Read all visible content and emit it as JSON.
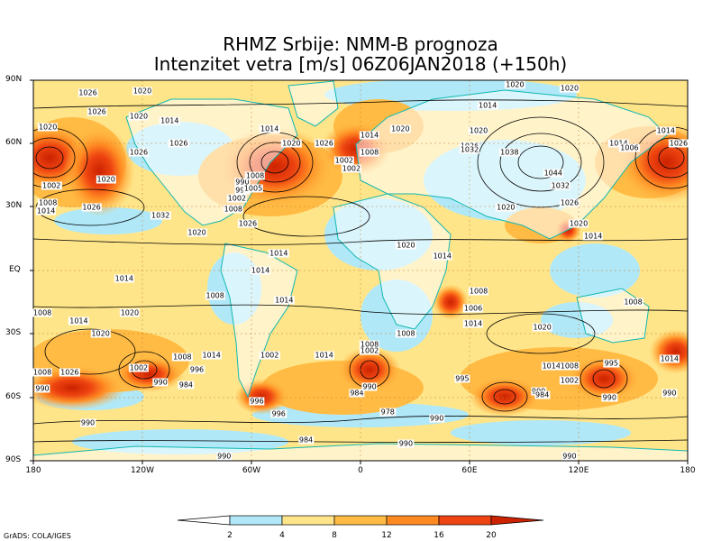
{
  "header": {
    "line1": "RHMZ Srbije: NMM-B prognoza",
    "line2": "Intenzitet vetra [m/s] 06Z06JAN2018 (+150h)"
  },
  "axes": {
    "lat_labels": [
      "90N",
      "60N",
      "30N",
      "EQ",
      "30S",
      "60S",
      "90S"
    ],
    "lon_labels": [
      "180",
      "120W",
      "60W",
      "0",
      "60E",
      "120E",
      "180"
    ]
  },
  "colorbar": {
    "labels": [
      "2",
      "4",
      "8",
      "12",
      "16",
      "20"
    ],
    "colors": [
      "#ffffff",
      "#b0e8f8",
      "#ffe58a",
      "#ffbb44",
      "#ff8a22",
      "#ee4411",
      "#cc2200"
    ]
  },
  "credit": "GrADS: COLA/IGES",
  "isobar_labels": [
    {
      "t": "1026",
      "lon": -150,
      "lat": 84
    },
    {
      "t": "1020",
      "lon": -120,
      "lat": 85
    },
    {
      "t": "1020",
      "lon": 115,
      "lat": 86
    },
    {
      "t": "1020",
      "lon": 85,
      "lat": 88
    },
    {
      "t": "1020",
      "lon": -172,
      "lat": 68
    },
    {
      "t": "1026",
      "lon": -145,
      "lat": 75
    },
    {
      "t": "1020",
      "lon": -122,
      "lat": 73
    },
    {
      "t": "1014",
      "lon": -105,
      "lat": 71
    },
    {
      "t": "1026",
      "lon": -100,
      "lat": 60
    },
    {
      "t": "1014",
      "lon": -50,
      "lat": 67
    },
    {
      "t": "1020",
      "lon": -38,
      "lat": 60
    },
    {
      "t": "1026",
      "lon": -20,
      "lat": 60
    },
    {
      "t": "1014",
      "lon": 5,
      "lat": 64
    },
    {
      "t": "1020",
      "lon": 22,
      "lat": 67
    },
    {
      "t": "1008",
      "lon": 5,
      "lat": 56
    },
    {
      "t": "1002",
      "lon": -5,
      "lat": 48
    },
    {
      "t": "1026",
      "lon": -122,
      "lat": 56
    },
    {
      "t": "1014",
      "lon": 70,
      "lat": 78
    },
    {
      "t": "1020",
      "lon": 65,
      "lat": 66
    },
    {
      "t": "1026",
      "lon": 60,
      "lat": 59
    },
    {
      "t": "1032",
      "lon": 60,
      "lat": 57
    },
    {
      "t": "1038",
      "lon": 82,
      "lat": 56
    },
    {
      "t": "1044",
      "lon": 106,
      "lat": 46
    },
    {
      "t": "1032",
      "lon": 110,
      "lat": 40
    },
    {
      "t": "1026",
      "lon": 115,
      "lat": 32
    },
    {
      "t": "1020",
      "lon": 80,
      "lat": 30
    },
    {
      "t": "1020",
      "lon": 120,
      "lat": 22
    },
    {
      "t": "1014",
      "lon": 128,
      "lat": 16
    },
    {
      "t": "1014",
      "lon": 142,
      "lat": 60
    },
    {
      "t": "1006",
      "lon": 148,
      "lat": 58
    },
    {
      "t": "1014",
      "lon": 168,
      "lat": 66
    },
    {
      "t": "1002",
      "lon": -170,
      "lat": 40
    },
    {
      "t": "1008",
      "lon": -172,
      "lat": 32
    },
    {
      "t": "1014",
      "lon": -173,
      "lat": 28
    },
    {
      "t": "1026",
      "lon": -148,
      "lat": 30
    },
    {
      "t": "1020",
      "lon": -140,
      "lat": 43
    },
    {
      "t": "1032",
      "lon": -110,
      "lat": 26
    },
    {
      "t": "1020",
      "lon": -90,
      "lat": 18
    },
    {
      "t": "1026",
      "lon": -62,
      "lat": 22
    },
    {
      "t": "990",
      "lon": -65,
      "lat": 42
    },
    {
      "t": "996",
      "lon": -65,
      "lat": 38
    },
    {
      "t": "1002",
      "lon": -68,
      "lat": 34
    },
    {
      "t": "1008",
      "lon": -70,
      "lat": 29
    },
    {
      "t": "1014",
      "lon": -130,
      "lat": -4
    },
    {
      "t": "1014",
      "lon": -55,
      "lat": 0
    },
    {
      "t": "1014",
      "lon": -45,
      "lat": 8
    },
    {
      "t": "1020",
      "lon": 25,
      "lat": 12
    },
    {
      "t": "1014",
      "lon": 45,
      "lat": 7
    },
    {
      "t": "1008",
      "lon": -80,
      "lat": -12
    },
    {
      "t": "1014",
      "lon": -42,
      "lat": -14
    },
    {
      "t": "1008",
      "lon": -175,
      "lat": -20
    },
    {
      "t": "1014",
      "lon": -155,
      "lat": -24
    },
    {
      "t": "1020",
      "lon": -127,
      "lat": -20
    },
    {
      "t": "1020",
      "lon": -143,
      "lat": -30
    },
    {
      "t": "1026",
      "lon": -160,
      "lat": -48
    },
    {
      "t": "1002",
      "lon": -122,
      "lat": -46
    },
    {
      "t": "1008",
      "lon": -98,
      "lat": -41
    },
    {
      "t": "1014",
      "lon": -82,
      "lat": -40
    },
    {
      "t": "996",
      "lon": -90,
      "lat": -47
    },
    {
      "t": "990",
      "lon": -110,
      "lat": -53
    },
    {
      "t": "984",
      "lon": -96,
      "lat": -54
    },
    {
      "t": "1002",
      "lon": -50,
      "lat": -40
    },
    {
      "t": "1014",
      "lon": -20,
      "lat": -40
    },
    {
      "t": "1008",
      "lon": 5,
      "lat": -35
    },
    {
      "t": "1002",
      "lon": 5,
      "lat": -38
    },
    {
      "t": "1008",
      "lon": 25,
      "lat": -30
    },
    {
      "t": "1008",
      "lon": 65,
      "lat": -10
    },
    {
      "t": "1006",
      "lon": 62,
      "lat": -18
    },
    {
      "t": "1014",
      "lon": 62,
      "lat": -25
    },
    {
      "t": "1020",
      "lon": 100,
      "lat": -27
    },
    {
      "t": "1014",
      "lon": 105,
      "lat": -45
    },
    {
      "t": "1008",
      "lon": 115,
      "lat": -45
    },
    {
      "t": "1002",
      "lon": 115,
      "lat": -52
    },
    {
      "t": "984",
      "lon": -2,
      "lat": -58
    },
    {
      "t": "990",
      "lon": 5,
      "lat": -55
    },
    {
      "t": "996",
      "lon": -57,
      "lat": -62
    },
    {
      "t": "996",
      "lon": -45,
      "lat": -68
    },
    {
      "t": "978",
      "lon": 15,
      "lat": -67
    },
    {
      "t": "990",
      "lon": 42,
      "lat": -70
    },
    {
      "t": "995",
      "lon": 56,
      "lat": -51
    },
    {
      "t": "990",
      "lon": 98,
      "lat": -57
    },
    {
      "t": "984",
      "lon": 100,
      "lat": -59
    },
    {
      "t": "995",
      "lon": 138,
      "lat": -44
    },
    {
      "t": "990",
      "lon": 137,
      "lat": -60
    },
    {
      "t": "1008",
      "lon": 150,
      "lat": -15
    },
    {
      "t": "1014",
      "lon": 170,
      "lat": -42
    },
    {
      "t": "990",
      "lon": 170,
      "lat": -58
    },
    {
      "t": "1008",
      "lon": -178,
      "lat": -48
    },
    {
      "t": "990",
      "lon": -177,
      "lat": -56
    },
    {
      "t": "990",
      "lon": -150,
      "lat": -72
    },
    {
      "t": "984",
      "lon": -30,
      "lat": -80
    },
    {
      "t": "990",
      "lon": 25,
      "lat": -82
    },
    {
      "t": "990",
      "lon": -75,
      "lat": -90
    },
    {
      "t": "990",
      "lon": 115,
      "lat": -90
    },
    {
      "t": "1008",
      "lon": -58,
      "lat": 45
    },
    {
      "t": "1005",
      "lon": -59,
      "lat": 39
    },
    {
      "t": "1002",
      "lon": -9,
      "lat": 52
    },
    {
      "t": "1026",
      "lon": 175,
      "lat": 60
    }
  ]
}
